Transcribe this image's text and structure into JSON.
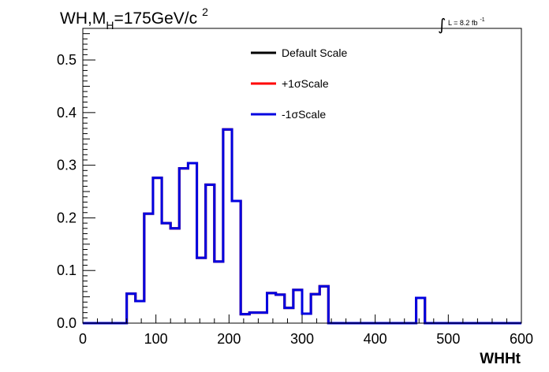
{
  "chart_data": {
    "type": "line",
    "title_parts": {
      "main": "WH,M",
      "sub": "H",
      "rest": "=175GeV/c",
      "sup": "2"
    },
    "lumi": {
      "integral": "∫",
      "text": "L = 8.2 fb",
      "sup": "-1"
    },
    "xlabel": "WHHt",
    "ylabel": "",
    "xlim": [
      0,
      600
    ],
    "ylim": [
      0,
      0.56
    ],
    "x_ticks": [
      "0",
      "100",
      "200",
      "300",
      "400",
      "500",
      "600"
    ],
    "y_ticks": [
      "0.0",
      "0.1",
      "0.2",
      "0.3",
      "0.4",
      "0.5"
    ],
    "grid": false,
    "legend_position": "top-center",
    "bin_width": 12,
    "bin_edges_start": 0,
    "series": [
      {
        "name": "Default Scale",
        "color": "#000000",
        "values": [
          0,
          0,
          0,
          0,
          0,
          0.056,
          0.042,
          0.208,
          0.276,
          0.19,
          0.18,
          0.294,
          0.304,
          0.124,
          0.263,
          0.117,
          0.368,
          0.232,
          0.017,
          0.02,
          0.02,
          0.057,
          0.054,
          0.029,
          0.063,
          0.018,
          0.055,
          0.07,
          0,
          0,
          0,
          0,
          0,
          0,
          0,
          0,
          0,
          0,
          0.048,
          0,
          0,
          0,
          0,
          0,
          0,
          0,
          0,
          0,
          0,
          0
        ]
      },
      {
        "name": "+1σScale",
        "color": "#ff0000",
        "values": [
          0,
          0,
          0,
          0,
          0,
          0.056,
          0.042,
          0.208,
          0.276,
          0.19,
          0.18,
          0.294,
          0.304,
          0.124,
          0.263,
          0.117,
          0.368,
          0.232,
          0.017,
          0.02,
          0.02,
          0.057,
          0.054,
          0.029,
          0.063,
          0.018,
          0.055,
          0.07,
          0,
          0,
          0,
          0,
          0,
          0,
          0,
          0,
          0,
          0,
          0.048,
          0,
          0,
          0,
          0,
          0,
          0,
          0,
          0,
          0,
          0,
          0
        ]
      },
      {
        "name": "-1σScale",
        "color": "#0000e0",
        "values": [
          0,
          0,
          0,
          0,
          0,
          0.056,
          0.042,
          0.208,
          0.276,
          0.19,
          0.18,
          0.294,
          0.304,
          0.124,
          0.263,
          0.117,
          0.368,
          0.232,
          0.017,
          0.02,
          0.02,
          0.057,
          0.054,
          0.029,
          0.063,
          0.018,
          0.055,
          0.07,
          0,
          0,
          0,
          0,
          0,
          0,
          0,
          0,
          0,
          0,
          0.048,
          0,
          0,
          0,
          0,
          0,
          0,
          0,
          0,
          0,
          0,
          0
        ]
      }
    ]
  }
}
